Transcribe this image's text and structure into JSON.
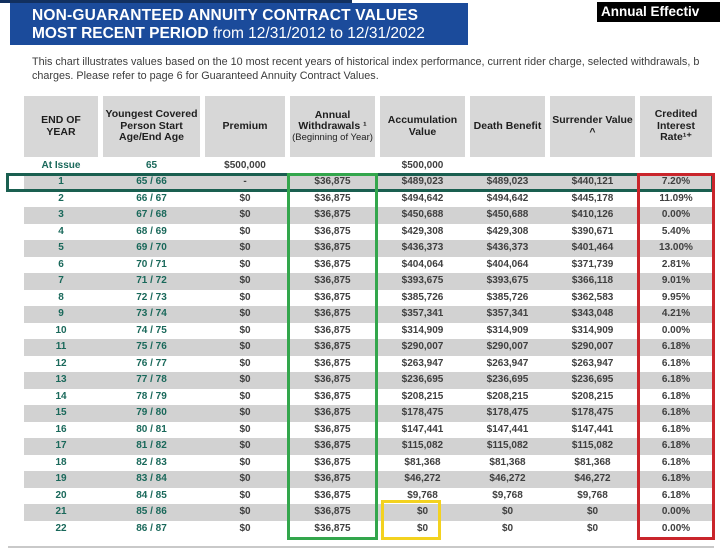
{
  "header": {
    "title_line1": "NON-GUARANTEED ANNUITY CONTRACT VALUES",
    "title_line2_bold": "MOST RECENT PERIOD",
    "title_line2_rest": " from 12/31/2012 to 12/31/2022",
    "callout_label": "Annual Effectiv"
  },
  "description": {
    "line1": "This chart illustrates values based on the 10 most recent years of historical index performance, current rider charge, selected withdrawals, b",
    "line2": "charges. Please refer to page 6 for Guaranteed Annuity Contract Values."
  },
  "table": {
    "columns": [
      {
        "label": "END OF YEAR",
        "sublabel": ""
      },
      {
        "label": "Youngest Covered Person Start Age/End Age",
        "sublabel": ""
      },
      {
        "label": "Premium",
        "sublabel": ""
      },
      {
        "label": "Annual Withdrawals ¹",
        "sublabel": "(Beginning of Year)"
      },
      {
        "label": "Accumulation Value",
        "sublabel": ""
      },
      {
        "label": "Death Benefit",
        "sublabel": ""
      },
      {
        "label": "Surrender Value ^",
        "sublabel": ""
      },
      {
        "label": "Credited Interest Rate¹⁺",
        "sublabel": ""
      }
    ],
    "at_issue": {
      "label": "At Issue",
      "age": "65",
      "premium": "$500,000",
      "accumulation_value": "$500,000"
    },
    "rows": [
      [
        "1",
        "65 / 66",
        "-",
        "$36,875",
        "$489,023",
        "$489,023",
        "$440,121",
        "7.20%"
      ],
      [
        "2",
        "66 / 67",
        "$0",
        "$36,875",
        "$494,642",
        "$494,642",
        "$445,178",
        "11.09%"
      ],
      [
        "3",
        "67 / 68",
        "$0",
        "$36,875",
        "$450,688",
        "$450,688",
        "$410,126",
        "0.00%"
      ],
      [
        "4",
        "68 / 69",
        "$0",
        "$36,875",
        "$429,308",
        "$429,308",
        "$390,671",
        "5.40%"
      ],
      [
        "5",
        "69 / 70",
        "$0",
        "$36,875",
        "$436,373",
        "$436,373",
        "$401,464",
        "13.00%"
      ],
      [
        "6",
        "70 / 71",
        "$0",
        "$36,875",
        "$404,064",
        "$404,064",
        "$371,739",
        "2.81%"
      ],
      [
        "7",
        "71 / 72",
        "$0",
        "$36,875",
        "$393,675",
        "$393,675",
        "$366,118",
        "9.01%"
      ],
      [
        "8",
        "72 / 73",
        "$0",
        "$36,875",
        "$385,726",
        "$385,726",
        "$362,583",
        "9.95%"
      ],
      [
        "9",
        "73 / 74",
        "$0",
        "$36,875",
        "$357,341",
        "$357,341",
        "$343,048",
        "4.21%"
      ],
      [
        "10",
        "74 / 75",
        "$0",
        "$36,875",
        "$314,909",
        "$314,909",
        "$314,909",
        "0.00%"
      ],
      [
        "11",
        "75 / 76",
        "$0",
        "$36,875",
        "$290,007",
        "$290,007",
        "$290,007",
        "6.18%"
      ],
      [
        "12",
        "76 / 77",
        "$0",
        "$36,875",
        "$263,947",
        "$263,947",
        "$263,947",
        "6.18%"
      ],
      [
        "13",
        "77 / 78",
        "$0",
        "$36,875",
        "$236,695",
        "$236,695",
        "$236,695",
        "6.18%"
      ],
      [
        "14",
        "78 / 79",
        "$0",
        "$36,875",
        "$208,215",
        "$208,215",
        "$208,215",
        "6.18%"
      ],
      [
        "15",
        "79 / 80",
        "$0",
        "$36,875",
        "$178,475",
        "$178,475",
        "$178,475",
        "6.18%"
      ],
      [
        "16",
        "80 / 81",
        "$0",
        "$36,875",
        "$147,441",
        "$147,441",
        "$147,441",
        "6.18%"
      ],
      [
        "17",
        "81 / 82",
        "$0",
        "$36,875",
        "$115,082",
        "$115,082",
        "$115,082",
        "6.18%"
      ],
      [
        "18",
        "82 / 83",
        "$0",
        "$36,875",
        "$81,368",
        "$81,368",
        "$81,368",
        "6.18%"
      ],
      [
        "19",
        "83 / 84",
        "$0",
        "$36,875",
        "$46,272",
        "$46,272",
        "$46,272",
        "6.18%"
      ],
      [
        "20",
        "84 / 85",
        "$0",
        "$36,875",
        "$9,768",
        "$9,768",
        "$9,768",
        "6.18%"
      ],
      [
        "21",
        "85 / 86",
        "$0",
        "$36,875",
        "$0",
        "$0",
        "$0",
        "0.00%"
      ],
      [
        "22",
        "86 / 87",
        "$0",
        "$36,875",
        "$0",
        "$0",
        "$0",
        "0.00%"
      ]
    ],
    "highlights": {
      "highlighted_row_year": "1",
      "withdrawals_column_box": "green",
      "credited_rate_column_box": "red",
      "zero_accumulation_rows_box": "yellow"
    }
  },
  "colors": {
    "title_bar_blue": "#1b4b9b",
    "top_accent_navy": "#12305f",
    "callout_black": "#000000",
    "teal_text": "#19685a",
    "row_highlight_border": "#1a5f50",
    "green_box": "#33a64c",
    "red_box": "#c9252b",
    "yellow_box": "#f3d21f",
    "stripe_gray": "#d2d2d2",
    "header_gray": "#d7d7d7"
  }
}
